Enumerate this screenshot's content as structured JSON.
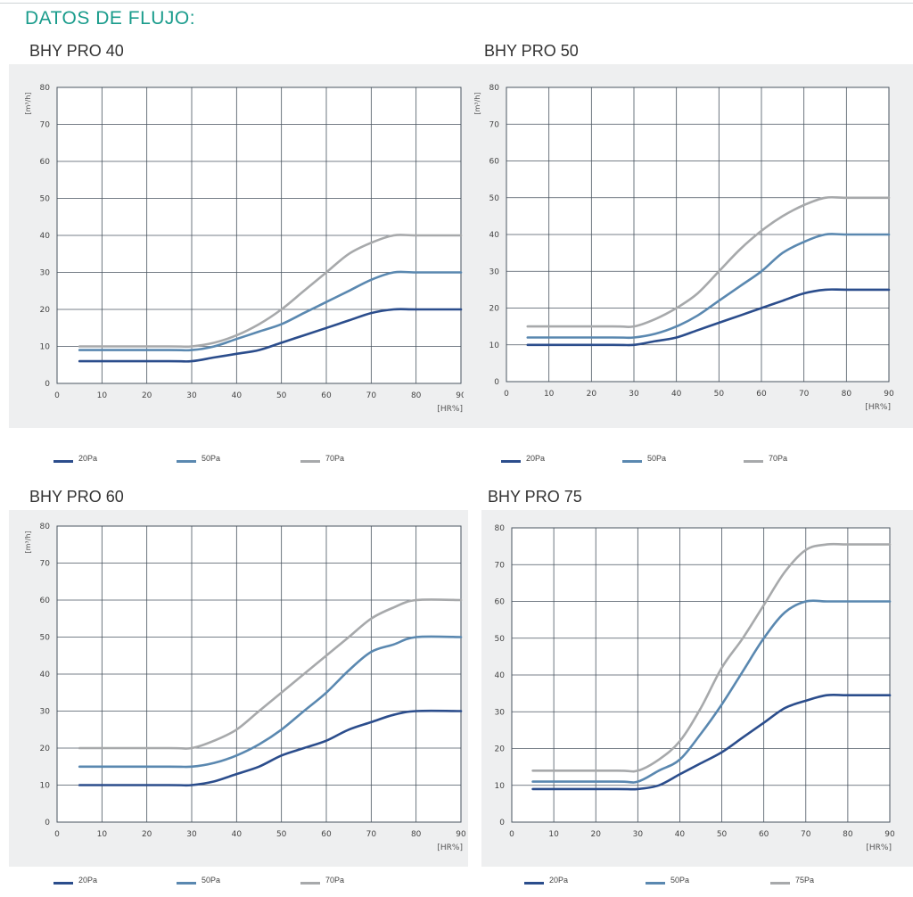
{
  "page": {
    "title": "DATOS DE FLUJO:"
  },
  "chart_data": [
    {
      "type": "line",
      "title": "BHY PRO 40",
      "ylabel": "[m³/h]",
      "xlabel": "[HR%]",
      "xlim": [
        0,
        90
      ],
      "ylim": [
        0,
        80
      ],
      "xticks": [
        0,
        10,
        20,
        30,
        40,
        50,
        60,
        70,
        80,
        90
      ],
      "yticks": [
        0,
        10,
        20,
        30,
        40,
        50,
        60,
        70,
        80
      ],
      "grid": true,
      "legend": "bottom",
      "series": [
        {
          "name": "20Pa",
          "color": "#2b4d8c",
          "x": [
            5,
            25,
            30,
            35,
            40,
            45,
            50,
            55,
            60,
            65,
            70,
            75,
            80,
            90
          ],
          "values": [
            6,
            6,
            6,
            7,
            8,
            9,
            11,
            13,
            15,
            17,
            19,
            20,
            20,
            20
          ]
        },
        {
          "name": "50Pa",
          "color": "#5a88b0",
          "x": [
            5,
            25,
            30,
            35,
            40,
            45,
            50,
            55,
            60,
            65,
            70,
            75,
            80,
            90
          ],
          "values": [
            9,
            9,
            9,
            10,
            12,
            14,
            16,
            19,
            22,
            25,
            28,
            30,
            30,
            30
          ]
        },
        {
          "name": "70Pa",
          "color": "#a7a9ab",
          "x": [
            5,
            25,
            30,
            35,
            40,
            45,
            50,
            55,
            60,
            65,
            70,
            75,
            80,
            90
          ],
          "values": [
            10,
            10,
            10,
            11,
            13,
            16,
            20,
            25,
            30,
            35,
            38,
            40,
            40,
            40
          ]
        }
      ]
    },
    {
      "type": "line",
      "title": "BHY PRO 50",
      "ylabel": "[m³/h]",
      "xlabel": "[HR%]",
      "xlim": [
        0,
        90
      ],
      "ylim": [
        0,
        80
      ],
      "xticks": [
        0,
        10,
        20,
        30,
        40,
        50,
        60,
        70,
        80,
        90
      ],
      "yticks": [
        0,
        10,
        20,
        30,
        40,
        50,
        60,
        70,
        80
      ],
      "grid": true,
      "legend": "bottom",
      "series": [
        {
          "name": "20Pa",
          "color": "#2b4d8c",
          "x": [
            5,
            25,
            30,
            35,
            40,
            45,
            50,
            55,
            60,
            65,
            70,
            75,
            80,
            90
          ],
          "values": [
            10,
            10,
            10,
            11,
            12,
            14,
            16,
            18,
            20,
            22,
            24,
            25,
            25,
            25
          ]
        },
        {
          "name": "50Pa",
          "color": "#5a88b0",
          "x": [
            5,
            25,
            30,
            35,
            40,
            45,
            50,
            55,
            60,
            65,
            70,
            75,
            80,
            90
          ],
          "values": [
            12,
            12,
            12,
            13,
            15,
            18,
            22,
            26,
            30,
            35,
            38,
            40,
            40,
            40
          ]
        },
        {
          "name": "70Pa",
          "color": "#a7a9ab",
          "x": [
            5,
            25,
            30,
            35,
            40,
            45,
            50,
            55,
            60,
            65,
            70,
            75,
            80,
            90
          ],
          "values": [
            15,
            15,
            15,
            17,
            20,
            24,
            30,
            36,
            41,
            45,
            48,
            50,
            50,
            50
          ]
        }
      ]
    },
    {
      "type": "line",
      "title": "BHY PRO 60",
      "ylabel": "[m³/h]",
      "xlabel": "[HR%]",
      "xlim": [
        0,
        90
      ],
      "ylim": [
        0,
        80
      ],
      "xticks": [
        0,
        10,
        20,
        30,
        40,
        50,
        60,
        70,
        80,
        90
      ],
      "yticks": [
        0,
        10,
        20,
        30,
        40,
        50,
        60,
        70,
        80
      ],
      "grid": true,
      "legend": "bottom",
      "series": [
        {
          "name": "20Pa",
          "color": "#2b4d8c",
          "x": [
            5,
            25,
            30,
            35,
            40,
            45,
            50,
            55,
            60,
            65,
            70,
            75,
            80,
            90
          ],
          "values": [
            10,
            10,
            10,
            11,
            13,
            15,
            18,
            20,
            22,
            25,
            27,
            29,
            30,
            30
          ]
        },
        {
          "name": "50Pa",
          "color": "#5a88b0",
          "x": [
            5,
            25,
            30,
            35,
            40,
            45,
            50,
            55,
            60,
            65,
            70,
            75,
            80,
            90
          ],
          "values": [
            15,
            15,
            15,
            16,
            18,
            21,
            25,
            30,
            35,
            41,
            46,
            48,
            50,
            50
          ]
        },
        {
          "name": "70Pa",
          "color": "#a7a9ab",
          "x": [
            5,
            25,
            30,
            35,
            40,
            45,
            50,
            55,
            60,
            65,
            70,
            75,
            80,
            90
          ],
          "values": [
            20,
            20,
            20,
            22,
            25,
            30,
            35,
            40,
            45,
            50,
            55,
            58,
            60,
            60
          ]
        }
      ]
    },
    {
      "type": "line",
      "title": "BHY PRO 75",
      "ylabel": "",
      "xlabel": "[HR%]",
      "xlim": [
        0,
        90
      ],
      "ylim": [
        0,
        80
      ],
      "xticks": [
        0,
        10,
        20,
        30,
        40,
        50,
        60,
        70,
        80,
        90
      ],
      "yticks": [
        0,
        10,
        20,
        30,
        40,
        50,
        60,
        70,
        80
      ],
      "grid": true,
      "legend": "bottom",
      "series": [
        {
          "name": "20Pa",
          "color": "#2b4d8c",
          "x": [
            5,
            25,
            30,
            35,
            40,
            45,
            50,
            55,
            60,
            65,
            70,
            75,
            80,
            90
          ],
          "values": [
            9,
            9,
            9,
            10,
            13,
            16,
            19,
            23,
            27,
            31,
            33,
            34.5,
            34.5,
            34.5
          ]
        },
        {
          "name": "50Pa",
          "color": "#5a88b0",
          "x": [
            5,
            25,
            30,
            35,
            40,
            45,
            50,
            55,
            60,
            65,
            70,
            75,
            80,
            90
          ],
          "values": [
            11,
            11,
            11,
            14,
            17,
            24,
            32,
            41,
            50,
            57,
            60,
            60,
            60,
            60
          ]
        },
        {
          "name": "75Pa",
          "color": "#a7a9ab",
          "x": [
            5,
            25,
            30,
            35,
            40,
            45,
            50,
            55,
            60,
            65,
            70,
            75,
            80,
            90
          ],
          "values": [
            14,
            14,
            14,
            17,
            22,
            31,
            42,
            50,
            59,
            68,
            74,
            75.5,
            75.5,
            75.5
          ]
        }
      ]
    }
  ]
}
